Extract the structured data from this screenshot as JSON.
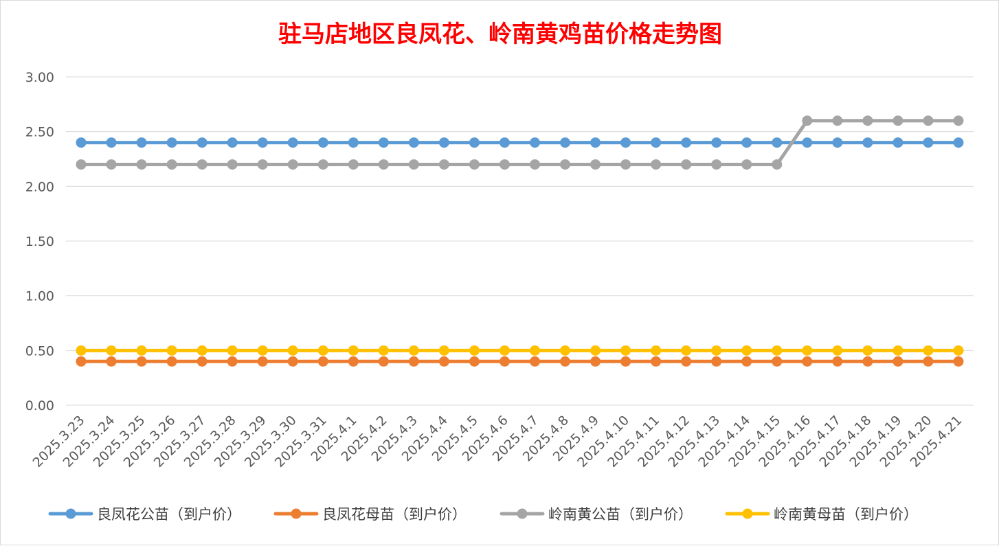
{
  "chart_data": {
    "type": "line",
    "title": "驻马店地区良凤花、岭南黄鸡苗价格走势图",
    "xlabel": "",
    "ylabel": "",
    "ylim": [
      0,
      3
    ],
    "yticks": [
      "0.00",
      "0.50",
      "1.00",
      "1.50",
      "2.00",
      "2.50",
      "3.00"
    ],
    "grid": true,
    "legend_position": "bottom",
    "categories": [
      "2025.3.23",
      "2025.3.24",
      "2025.3.25",
      "2025.3.26",
      "2025.3.27",
      "2025.3.28",
      "2025.3.29",
      "2025.3.30",
      "2025.3.31",
      "2025.4.1",
      "2025.4.2",
      "2025.4.3",
      "2025.4.4",
      "2025.4.5",
      "2025.4.6",
      "2025.4.7",
      "2025.4.8",
      "2025.4.9",
      "2025.4.10",
      "2025.4.11",
      "2025.4.12",
      "2025.4.13",
      "2025.4.14",
      "2025.4.15",
      "2025.4.16",
      "2025.4.17",
      "2025.4.18",
      "2025.4.19",
      "2025.4.20",
      "2025.4.21"
    ],
    "series": [
      {
        "name": "良凤花公苗（到户价）",
        "color": "#5b9bd5",
        "values": [
          2.4,
          2.4,
          2.4,
          2.4,
          2.4,
          2.4,
          2.4,
          2.4,
          2.4,
          2.4,
          2.4,
          2.4,
          2.4,
          2.4,
          2.4,
          2.4,
          2.4,
          2.4,
          2.4,
          2.4,
          2.4,
          2.4,
          2.4,
          2.4,
          2.4,
          2.4,
          2.4,
          2.4,
          2.4,
          2.4
        ]
      },
      {
        "name": "良凤花母苗（到户价）",
        "color": "#ed7d31",
        "values": [
          0.4,
          0.4,
          0.4,
          0.4,
          0.4,
          0.4,
          0.4,
          0.4,
          0.4,
          0.4,
          0.4,
          0.4,
          0.4,
          0.4,
          0.4,
          0.4,
          0.4,
          0.4,
          0.4,
          0.4,
          0.4,
          0.4,
          0.4,
          0.4,
          0.4,
          0.4,
          0.4,
          0.4,
          0.4,
          0.4
        ]
      },
      {
        "name": "岭南黄公苗（到户价）",
        "color": "#a5a5a5",
        "values": [
          2.2,
          2.2,
          2.2,
          2.2,
          2.2,
          2.2,
          2.2,
          2.2,
          2.2,
          2.2,
          2.2,
          2.2,
          2.2,
          2.2,
          2.2,
          2.2,
          2.2,
          2.2,
          2.2,
          2.2,
          2.2,
          2.2,
          2.2,
          2.2,
          2.6,
          2.6,
          2.6,
          2.6,
          2.6,
          2.6
        ]
      },
      {
        "name": "岭南黄母苗（到户价）",
        "color": "#ffc000",
        "values": [
          0.5,
          0.5,
          0.5,
          0.5,
          0.5,
          0.5,
          0.5,
          0.5,
          0.5,
          0.5,
          0.5,
          0.5,
          0.5,
          0.5,
          0.5,
          0.5,
          0.5,
          0.5,
          0.5,
          0.5,
          0.5,
          0.5,
          0.5,
          0.5,
          0.5,
          0.5,
          0.5,
          0.5,
          0.5,
          0.5
        ]
      }
    ]
  }
}
